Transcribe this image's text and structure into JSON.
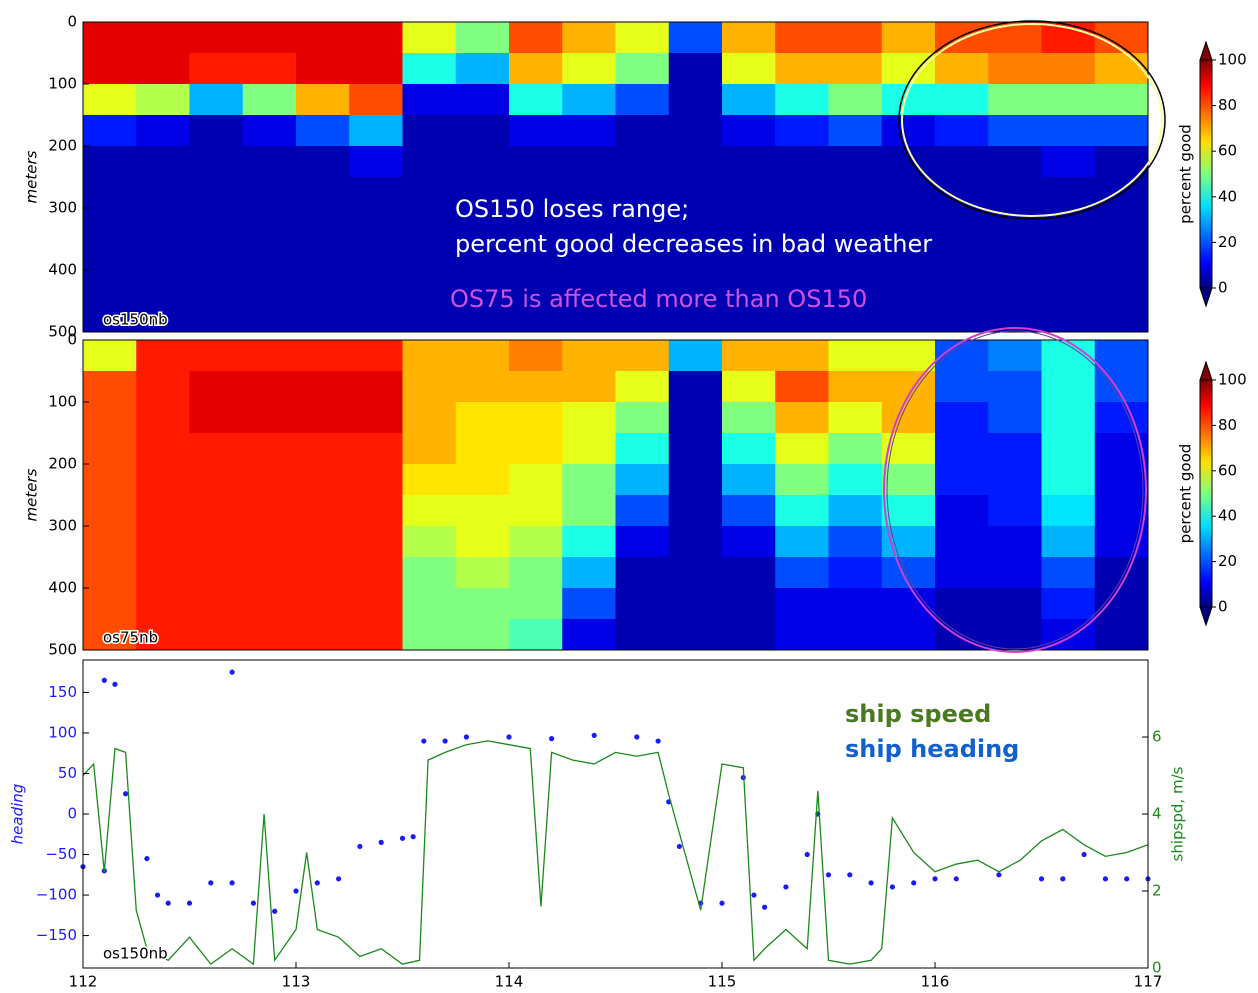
{
  "chart_data": [
    {
      "type": "heatmap",
      "label": "os150nb",
      "ylabel": "meters",
      "xbins": [
        112,
        112.25,
        112.5,
        112.75,
        113,
        113.25,
        113.5,
        113.75,
        114,
        114.25,
        114.5,
        114.75,
        115,
        115.25,
        115.5,
        115.75,
        116,
        116.25,
        116.5,
        116.75,
        117
      ],
      "ybins": [
        0,
        50,
        100,
        150,
        200,
        250,
        300,
        350,
        400,
        450,
        500
      ],
      "values": [
        [
          90,
          90,
          60,
          15,
          5,
          5,
          5,
          5,
          5,
          5
        ],
        [
          90,
          90,
          55,
          10,
          5,
          5,
          5,
          5,
          5,
          5
        ],
        [
          90,
          85,
          30,
          5,
          5,
          5,
          5,
          5,
          5,
          5
        ],
        [
          90,
          85,
          50,
          10,
          5,
          5,
          5,
          5,
          5,
          5
        ],
        [
          90,
          90,
          70,
          20,
          5,
          5,
          5,
          5,
          5,
          5
        ],
        [
          90,
          90,
          80,
          30,
          10,
          5,
          5,
          5,
          5,
          5
        ],
        [
          60,
          40,
          10,
          5,
          5,
          5,
          5,
          5,
          5,
          5
        ],
        [
          50,
          30,
          10,
          5,
          5,
          5,
          5,
          5,
          5,
          5
        ],
        [
          80,
          70,
          40,
          10,
          5,
          5,
          5,
          5,
          5,
          5
        ],
        [
          70,
          60,
          30,
          10,
          5,
          5,
          5,
          5,
          5,
          5
        ],
        [
          60,
          50,
          20,
          5,
          5,
          5,
          5,
          5,
          5,
          5
        ],
        [
          20,
          5,
          5,
          5,
          5,
          5,
          5,
          5,
          5,
          5
        ],
        [
          70,
          60,
          30,
          10,
          5,
          5,
          5,
          5,
          5,
          5
        ],
        [
          80,
          70,
          40,
          15,
          5,
          5,
          5,
          5,
          5,
          5
        ],
        [
          80,
          70,
          50,
          20,
          5,
          5,
          5,
          5,
          5,
          5
        ],
        [
          70,
          60,
          40,
          10,
          5,
          5,
          5,
          5,
          5,
          5
        ],
        [
          80,
          70,
          40,
          15,
          5,
          5,
          5,
          5,
          5,
          5
        ],
        [
          80,
          75,
          50,
          20,
          5,
          5,
          5,
          5,
          5,
          5
        ],
        [
          85,
          75,
          50,
          20,
          10,
          5,
          5,
          5,
          5,
          5
        ],
        [
          80,
          70,
          50,
          20,
          5,
          5,
          5,
          5,
          5,
          5
        ]
      ],
      "xlim": [
        112,
        117
      ],
      "ylim": [
        500,
        0
      ],
      "yticks": [
        0,
        100,
        200,
        300,
        400,
        500
      ],
      "colorbar": {
        "label": "percent good",
        "colormap": "jet",
        "lim": [
          0,
          100
        ],
        "ticks": [
          0,
          20,
          40,
          60,
          80,
          100
        ]
      },
      "annotations": [
        "OS150 loses range;",
        "percent good decreases in bad weather",
        "OS75 is affected more than OS150"
      ]
    },
    {
      "type": "heatmap",
      "label": "os75nb",
      "ylabel": "meters",
      "xbins": [
        112,
        112.25,
        112.5,
        112.75,
        113,
        113.25,
        113.5,
        113.75,
        114,
        114.25,
        114.5,
        114.75,
        115,
        115.25,
        115.5,
        115.75,
        116,
        116.25,
        116.5,
        116.75,
        117
      ],
      "ybins": [
        0,
        50,
        100,
        150,
        200,
        250,
        300,
        350,
        400,
        450,
        500
      ],
      "values": [
        [
          60,
          80,
          80,
          80,
          80,
          80,
          80,
          80,
          80,
          80
        ],
        [
          85,
          85,
          85,
          85,
          85,
          85,
          85,
          85,
          85,
          85
        ],
        [
          85,
          90,
          90,
          85,
          85,
          85,
          85,
          85,
          85,
          85
        ],
        [
          85,
          90,
          90,
          85,
          85,
          85,
          85,
          85,
          85,
          85
        ],
        [
          85,
          90,
          90,
          85,
          85,
          85,
          85,
          85,
          85,
          85
        ],
        [
          85,
          90,
          90,
          85,
          85,
          85,
          85,
          85,
          85,
          85
        ],
        [
          70,
          70,
          70,
          70,
          65,
          60,
          55,
          50,
          50,
          50
        ],
        [
          70,
          70,
          65,
          65,
          65,
          60,
          60,
          55,
          50,
          50
        ],
        [
          75,
          70,
          65,
          65,
          60,
          60,
          55,
          50,
          50,
          45
        ],
        [
          70,
          70,
          60,
          60,
          50,
          50,
          40,
          30,
          20,
          10
        ],
        [
          70,
          60,
          50,
          40,
          30,
          20,
          10,
          5,
          5,
          5
        ],
        [
          30,
          5,
          5,
          5,
          5,
          5,
          5,
          5,
          5,
          5
        ],
        [
          70,
          60,
          50,
          40,
          30,
          20,
          10,
          5,
          5,
          5
        ],
        [
          70,
          80,
          70,
          60,
          50,
          40,
          30,
          20,
          10,
          10
        ],
        [
          60,
          70,
          60,
          50,
          40,
          30,
          20,
          15,
          10,
          10
        ],
        [
          60,
          70,
          70,
          60,
          50,
          40,
          30,
          20,
          10,
          10
        ],
        [
          20,
          20,
          15,
          15,
          15,
          10,
          10,
          10,
          5,
          5
        ],
        [
          25,
          20,
          20,
          15,
          15,
          15,
          10,
          10,
          5,
          5
        ],
        [
          40,
          40,
          40,
          40,
          40,
          35,
          30,
          20,
          15,
          10
        ],
        [
          20,
          20,
          15,
          10,
          10,
          10,
          10,
          5,
          5,
          5
        ]
      ],
      "xlim": [
        112,
        117
      ],
      "ylim": [
        500,
        0
      ],
      "yticks": [
        0,
        100,
        200,
        300,
        400,
        500
      ],
      "colorbar": {
        "label": "percent good",
        "colormap": "jet",
        "lim": [
          0,
          100
        ],
        "ticks": [
          0,
          20,
          40,
          60,
          80,
          100
        ]
      }
    },
    {
      "type": "line",
      "label": "os150nb",
      "ylabel": "heading",
      "y2label": "shipspd, m/s",
      "xlim": [
        112,
        117
      ],
      "xticks": [
        112,
        113,
        114,
        115,
        116,
        117
      ],
      "ylim": [
        -190,
        190
      ],
      "yticks": [
        {
          "value": -150,
          "label": "−150"
        },
        {
          "value": -100,
          "label": "−100"
        },
        {
          "value": -50,
          "label": "−50"
        },
        0,
        50,
        100,
        150
      ],
      "y2lim": [
        0,
        8
      ],
      "y2ticks": [
        0,
        2,
        4,
        6
      ],
      "series": [
        {
          "name": "ship heading",
          "color": "#1a1aff",
          "style": "points",
          "x": [
            112.0,
            112.1,
            112.1,
            112.15,
            112.2,
            112.3,
            112.35,
            112.4,
            112.5,
            112.6,
            112.7,
            112.7,
            112.8,
            112.9,
            113.0,
            113.1,
            113.2,
            113.3,
            113.4,
            113.5,
            113.55,
            113.6,
            113.7,
            113.8,
            114.0,
            114.2,
            114.4,
            114.6,
            114.7,
            114.75,
            114.8,
            114.9,
            115.0,
            115.1,
            115.15,
            115.2,
            115.3,
            115.4,
            115.45,
            115.5,
            115.6,
            115.7,
            115.8,
            115.9,
            116.0,
            116.1,
            116.3,
            116.5,
            116.6,
            116.7,
            116.8,
            116.9,
            117.0
          ],
          "values": [
            -65,
            -70,
            165,
            160,
            25,
            -55,
            -100,
            -110,
            -110,
            -85,
            -85,
            175,
            -110,
            -120,
            -95,
            -85,
            -80,
            -40,
            -35,
            -30,
            -28,
            90,
            90,
            95,
            95,
            93,
            97,
            95,
            90,
            15,
            -40,
            -110,
            -110,
            45,
            -100,
            -115,
            -90,
            -50,
            0,
            -75,
            -75,
            -85,
            -90,
            -85,
            -80,
            -80,
            -75,
            -80,
            -80,
            -50,
            -80,
            -80,
            -80
          ]
        },
        {
          "name": "ship speed",
          "color": "#1a8a1a",
          "style": "line",
          "axis": "y2",
          "x": [
            112.0,
            112.05,
            112.1,
            112.15,
            112.2,
            112.25,
            112.3,
            112.4,
            112.5,
            112.6,
            112.7,
            112.8,
            112.85,
            112.9,
            113.0,
            113.05,
            113.1,
            113.2,
            113.3,
            113.4,
            113.5,
            113.58,
            113.62,
            113.7,
            113.8,
            113.9,
            114.0,
            114.1,
            114.15,
            114.2,
            114.3,
            114.4,
            114.5,
            114.6,
            114.7,
            114.75,
            114.85,
            114.9,
            115.0,
            115.1,
            115.15,
            115.2,
            115.3,
            115.4,
            115.45,
            115.5,
            115.6,
            115.7,
            115.75,
            115.8,
            115.9,
            116.0,
            116.1,
            116.2,
            116.3,
            116.4,
            116.5,
            116.6,
            116.7,
            116.8,
            116.9,
            117.0
          ],
          "values": [
            5.0,
            5.3,
            2.5,
            5.7,
            5.6,
            1.5,
            0.5,
            0.2,
            0.8,
            0.1,
            0.5,
            0.1,
            4.0,
            0.2,
            1.0,
            3.0,
            1.0,
            0.8,
            0.3,
            0.5,
            0.1,
            0.2,
            5.4,
            5.6,
            5.8,
            5.9,
            5.8,
            5.7,
            1.6,
            5.6,
            5.4,
            5.3,
            5.6,
            5.5,
            5.6,
            4.5,
            2.5,
            1.5,
            5.3,
            5.2,
            0.2,
            0.5,
            1.0,
            0.5,
            4.6,
            0.2,
            0.1,
            0.2,
            0.5,
            3.9,
            3.0,
            2.5,
            2.7,
            2.8,
            2.5,
            2.8,
            3.3,
            3.6,
            3.2,
            2.9,
            3.0,
            3.2
          ]
        }
      ]
    }
  ]
}
